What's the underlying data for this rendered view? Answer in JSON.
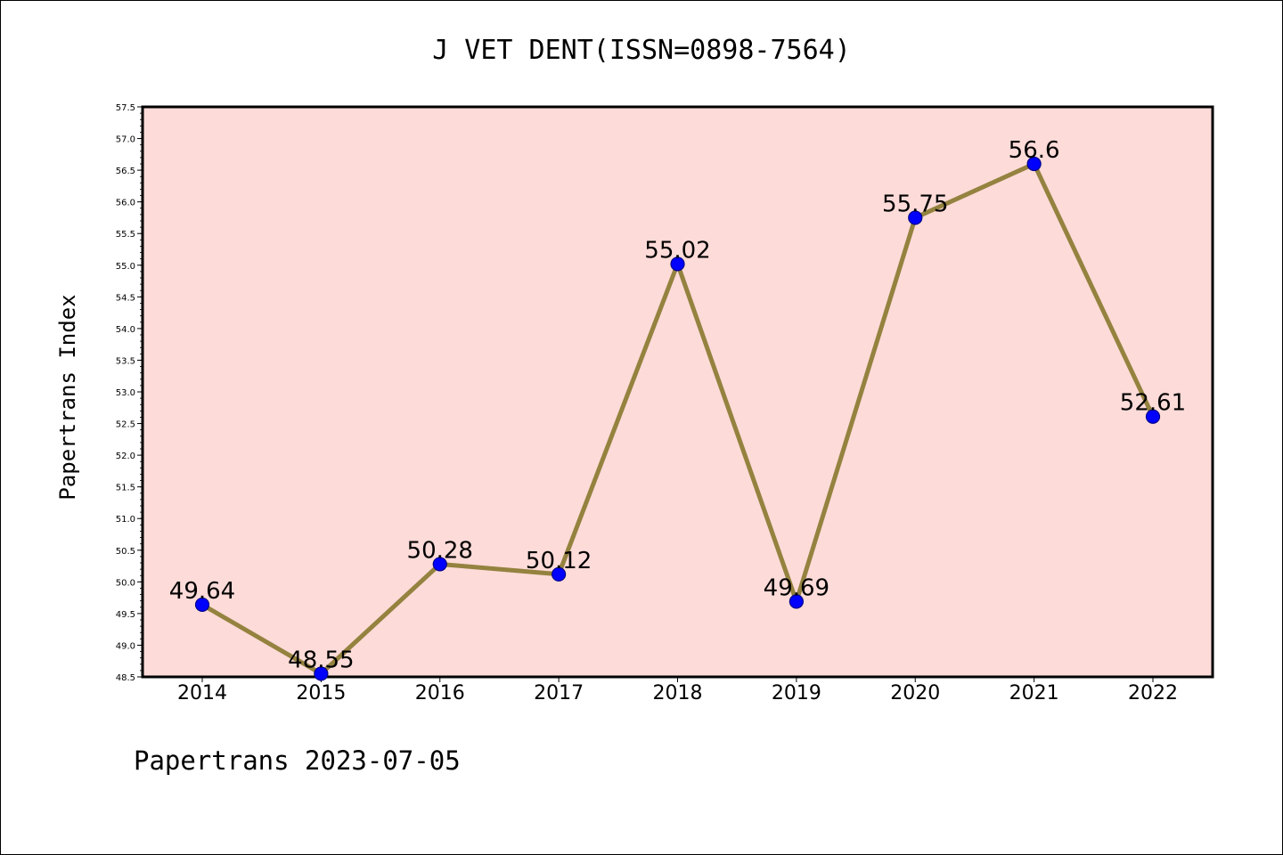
{
  "chart_data": {
    "type": "line",
    "title": "J VET DENT(ISSN=0898-7564)",
    "ylabel": "Papertrans Index",
    "xlabel": "",
    "footer": "Papertrans 2023-07-05",
    "categories": [
      "2014",
      "2015",
      "2016",
      "2017",
      "2018",
      "2019",
      "2020",
      "2021",
      "2022"
    ],
    "series": [
      {
        "values": [
          49.64,
          48.55,
          50.28,
          50.12,
          55.02,
          49.69,
          55.75,
          56.6,
          52.61
        ],
        "labels": [
          "49.64",
          "48.55",
          "50.28",
          "50.12",
          "55.02",
          "49.69",
          "55.75",
          "56.6",
          "52.61"
        ]
      }
    ],
    "ylim": [
      48.5,
      57.5
    ],
    "yticks": [
      "48.5",
      "49.0",
      "49.5",
      "50.0",
      "50.5",
      "51.0",
      "51.5",
      "52.0",
      "52.5",
      "53.0",
      "53.5",
      "54.0",
      "54.5",
      "55.0",
      "55.5",
      "56.0",
      "56.5",
      "57.0",
      "57.5"
    ],
    "grid": false,
    "colors": {
      "plot_background": "#fddbd8",
      "line": "#94823f",
      "marker": "#0000ff",
      "marker_edge": "#00008b"
    }
  }
}
